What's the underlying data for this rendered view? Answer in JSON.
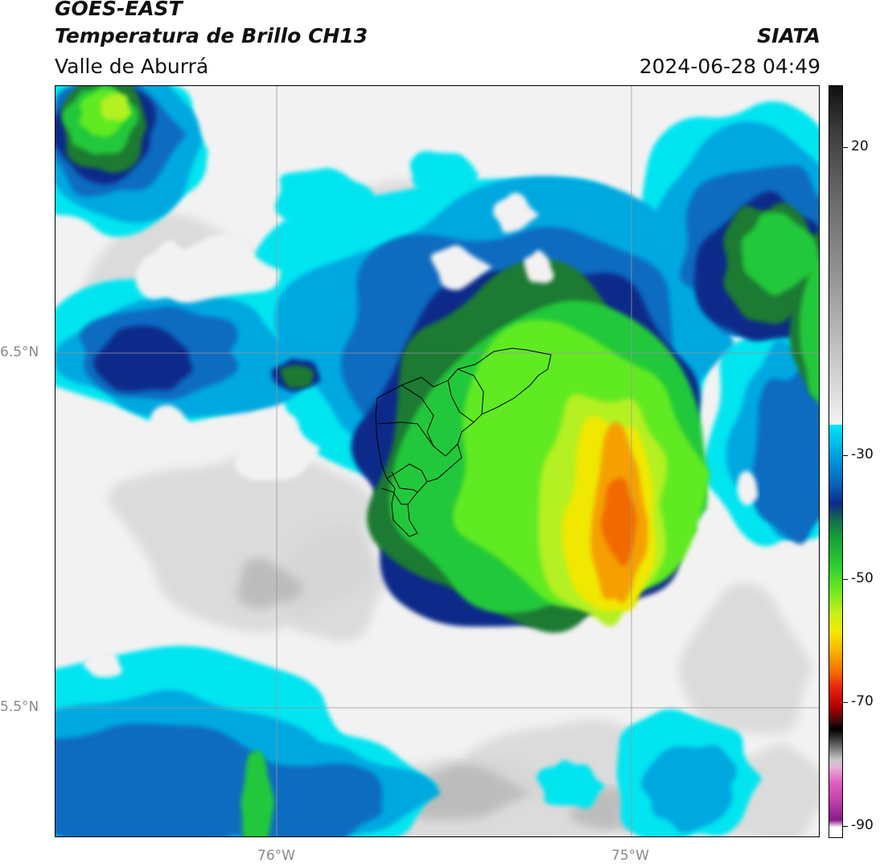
{
  "header": {
    "satellite": "GOES-EAST",
    "product": "Temperatura de Brillo CH13",
    "region": "Valle de Aburrá",
    "org": "SIATA",
    "datetime": "2024-06-28 04:49"
  },
  "axes": {
    "lat_labels": [
      "6.5°N",
      "5.5°N"
    ],
    "lon_labels": [
      "76°W",
      "75°W"
    ]
  },
  "colorbar": {
    "ticks": [
      "20",
      "-30",
      "-50",
      "-70",
      "-90"
    ],
    "tick_values": [
      20,
      -30,
      -50,
      -70,
      -90
    ],
    "range": [
      -92,
      30
    ]
  },
  "colors": {
    "white": "#f2f2f2",
    "light_gray": "#d6d6d6",
    "mid_gray": "#b0b0b0",
    "cyan": "#00e5f0",
    "light_blue": "#00a8e0",
    "blue": "#0a6cc0",
    "dark_blue": "#0a2a8a",
    "dark_green": "#1a7a30",
    "green": "#22c83a",
    "light_green": "#60ea20",
    "lime": "#b4f020",
    "yellow": "#f0e800",
    "orange": "#f5a000",
    "red_orange": "#f06a00"
  }
}
